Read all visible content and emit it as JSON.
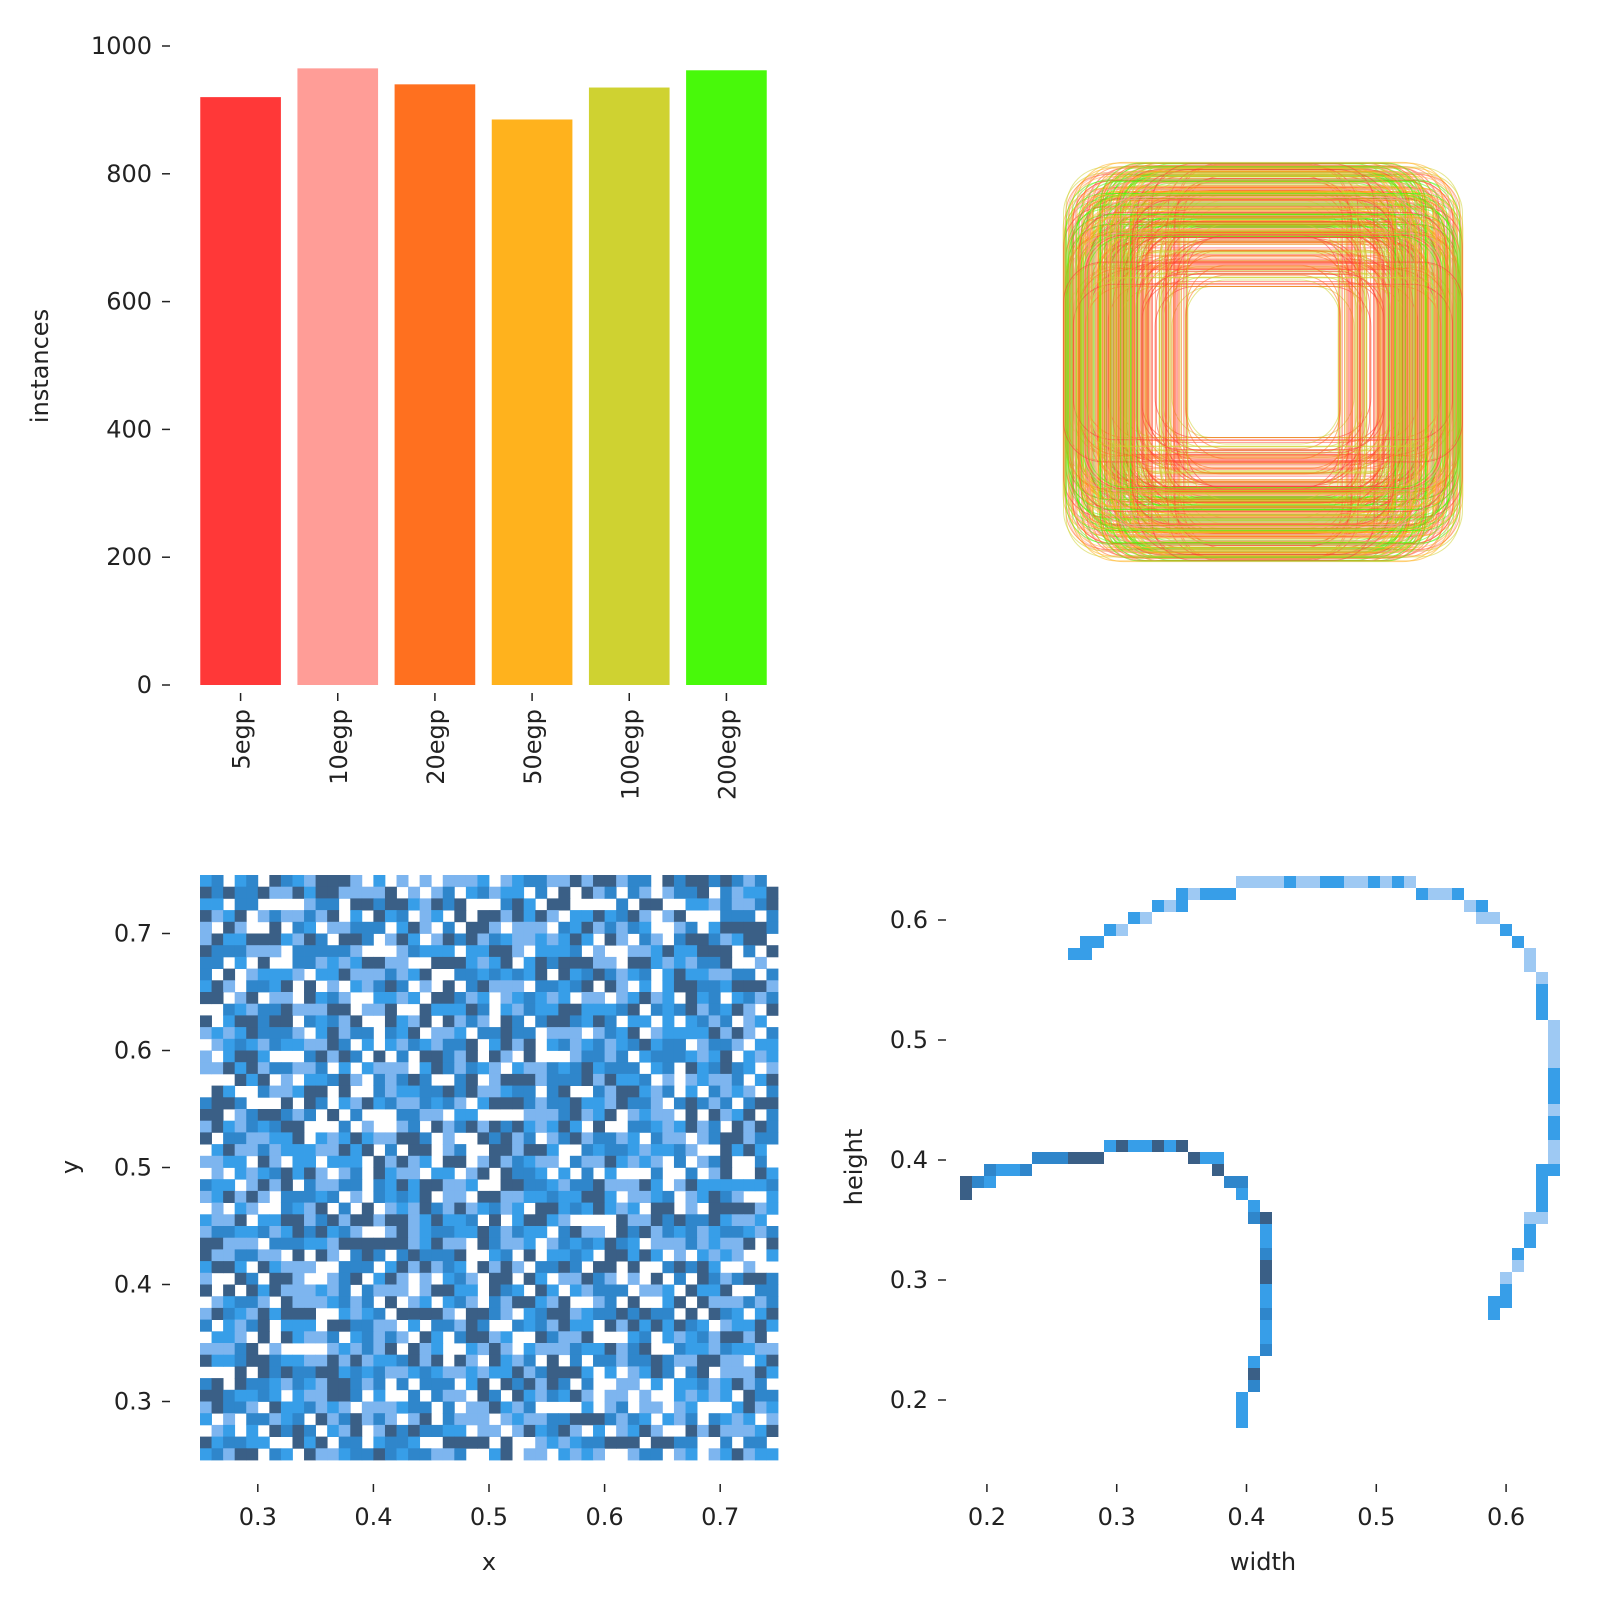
{
  "chart_data": [
    {
      "type": "bar",
      "categories": [
        "5egp",
        "10egp",
        "20egp",
        "50egp",
        "100egp",
        "200egp"
      ],
      "values": [
        920,
        965,
        940,
        885,
        935,
        962
      ],
      "colors": [
        "#ff3838",
        "#ff9d97",
        "#ff701f",
        "#ffb21d",
        "#cfd231",
        "#48f90a"
      ],
      "title": "",
      "xlabel": "",
      "ylabel": "instances",
      "ylim": [
        0,
        1000
      ],
      "yticks": [
        0,
        200,
        400,
        600,
        800,
        1000
      ],
      "grid": false
    },
    {
      "type": "other",
      "description_kind": "overlaid bounding boxes centred on one point, outlined in the class colours",
      "title": "",
      "colors": [
        "#ff3838",
        "#ff9d97",
        "#ff701f",
        "#ffb21d",
        "#cfd231",
        "#48f90a"
      ]
    },
    {
      "type": "heatmap",
      "xlabel": "x",
      "ylabel": "y",
      "xlim": [
        0.25,
        0.75
      ],
      "ylim": [
        0.25,
        0.75
      ],
      "xticks": [
        0.3,
        0.4,
        0.5,
        0.6,
        0.7
      ],
      "yticks": [
        0.3,
        0.4,
        0.5,
        0.6,
        0.7
      ],
      "bins": 50,
      "palette": [
        "#ffffff",
        "#7db5ef",
        "#379ee8",
        "#2f86cb",
        "#3a5f86"
      ]
    },
    {
      "type": "heatmap",
      "xlabel": "width",
      "ylabel": "height",
      "xlim": [
        0.16,
        0.64
      ],
      "ylim": [
        0.15,
        0.65
      ],
      "xticks": [
        0.2,
        0.3,
        0.4,
        0.5,
        0.6
      ],
      "yticks": [
        0.2,
        0.3,
        0.4,
        0.5,
        0.6
      ],
      "palette": [
        "#9ec9f3",
        "#379ee8",
        "#2f86cb",
        "#3a5f86"
      ],
      "curves": [
        {
          "name": "",
          "points": [
            [
              0.26,
              0.575
            ],
            [
              0.3,
              0.6
            ],
            [
              0.35,
              0.625
            ],
            [
              0.4,
              0.635
            ],
            [
              0.45,
              0.635
            ],
            [
              0.5,
              0.635
            ],
            [
              0.55,
              0.63
            ],
            [
              0.58,
              0.61
            ],
            [
              0.61,
              0.58
            ],
            [
              0.625,
              0.54
            ],
            [
              0.63,
              0.5
            ],
            [
              0.63,
              0.45
            ],
            [
              0.628,
              0.4
            ],
            [
              0.62,
              0.36
            ],
            [
              0.608,
              0.33
            ],
            [
              0.595,
              0.3
            ],
            [
              0.58,
              0.265
            ]
          ]
        },
        {
          "name": "",
          "points": [
            [
              0.175,
              0.38
            ],
            [
              0.2,
              0.395
            ],
            [
              0.24,
              0.405
            ],
            [
              0.28,
              0.41
            ],
            [
              0.31,
              0.42
            ],
            [
              0.34,
              0.415
            ],
            [
              0.37,
              0.405
            ],
            [
              0.39,
              0.385
            ],
            [
              0.405,
              0.36
            ],
            [
              0.41,
              0.33
            ],
            [
              0.415,
              0.3
            ],
            [
              0.41,
              0.27
            ],
            [
              0.405,
              0.24
            ],
            [
              0.395,
              0.21
            ],
            [
              0.385,
              0.18
            ]
          ]
        }
      ]
    }
  ]
}
